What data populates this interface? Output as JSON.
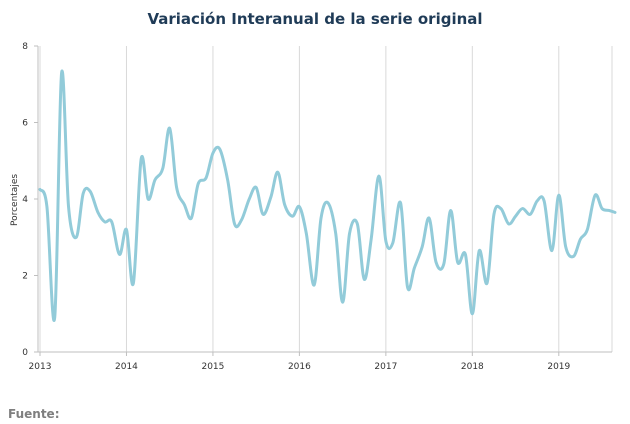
{
  "chart_data": {
    "type": "line",
    "title": "Variación Interanual de la serie original",
    "ylabel": "Porcentajes",
    "xlabel": "",
    "ylim": [
      0,
      8
    ],
    "yticks": [
      0,
      2,
      4,
      6,
      8
    ],
    "xlim": [
      2013.0,
      2019.65
    ],
    "xticks": [
      2013,
      2014,
      2015,
      2016,
      2017,
      2018,
      2019
    ],
    "grid": "vertical",
    "line_color": "#92cbd9",
    "series": [
      {
        "x": [
          2013.0,
          2013.08,
          2013.17,
          2013.25,
          2013.33,
          2013.42,
          2013.5,
          2013.58,
          2013.67,
          2013.75,
          2013.83,
          2013.92,
          2014.0,
          2014.08,
          2014.17,
          2014.25,
          2014.33,
          2014.42,
          2014.5,
          2014.58,
          2014.67,
          2014.75,
          2014.83,
          2014.92,
          2015.0,
          2015.08,
          2015.17,
          2015.25,
          2015.33,
          2015.42,
          2015.5,
          2015.58,
          2015.67,
          2015.75,
          2015.83,
          2015.92,
          2016.0,
          2016.08,
          2016.17,
          2016.25,
          2016.33,
          2016.42,
          2016.5,
          2016.58,
          2016.67,
          2016.75,
          2016.83,
          2016.92,
          2017.0,
          2017.08,
          2017.17,
          2017.25,
          2017.33,
          2017.42,
          2017.5,
          2017.58,
          2017.67,
          2017.75,
          2017.83,
          2017.92,
          2018.0,
          2018.08,
          2018.17,
          2018.25,
          2018.33,
          2018.42,
          2018.5,
          2018.58,
          2018.67,
          2018.75,
          2018.83,
          2018.92,
          2019.0,
          2019.08,
          2019.17,
          2019.25,
          2019.33,
          2019.42,
          2019.5,
          2019.58,
          2019.65
        ],
        "values": [
          4.25,
          3.8,
          0.9,
          7.3,
          3.8,
          3.0,
          4.15,
          4.2,
          3.65,
          3.4,
          3.4,
          2.55,
          3.2,
          1.8,
          5.05,
          4.0,
          4.5,
          4.8,
          5.85,
          4.3,
          3.85,
          3.5,
          4.4,
          4.55,
          5.2,
          5.3,
          4.5,
          3.35,
          3.45,
          4.0,
          4.3,
          3.6,
          4.05,
          4.7,
          3.85,
          3.55,
          3.8,
          3.1,
          1.75,
          3.5,
          3.9,
          3.1,
          1.3,
          3.1,
          3.35,
          1.9,
          2.95,
          4.6,
          2.9,
          2.85,
          3.9,
          1.7,
          2.2,
          2.75,
          3.5,
          2.35,
          2.3,
          3.7,
          2.35,
          2.55,
          1.0,
          2.65,
          1.8,
          3.6,
          3.75,
          3.35,
          3.55,
          3.75,
          3.6,
          3.95,
          3.95,
          2.65,
          4.1,
          2.75,
          2.5,
          2.95,
          3.2,
          4.1,
          3.75,
          3.7,
          3.65
        ]
      }
    ]
  },
  "footer": {
    "source_label": "Fuente:"
  }
}
